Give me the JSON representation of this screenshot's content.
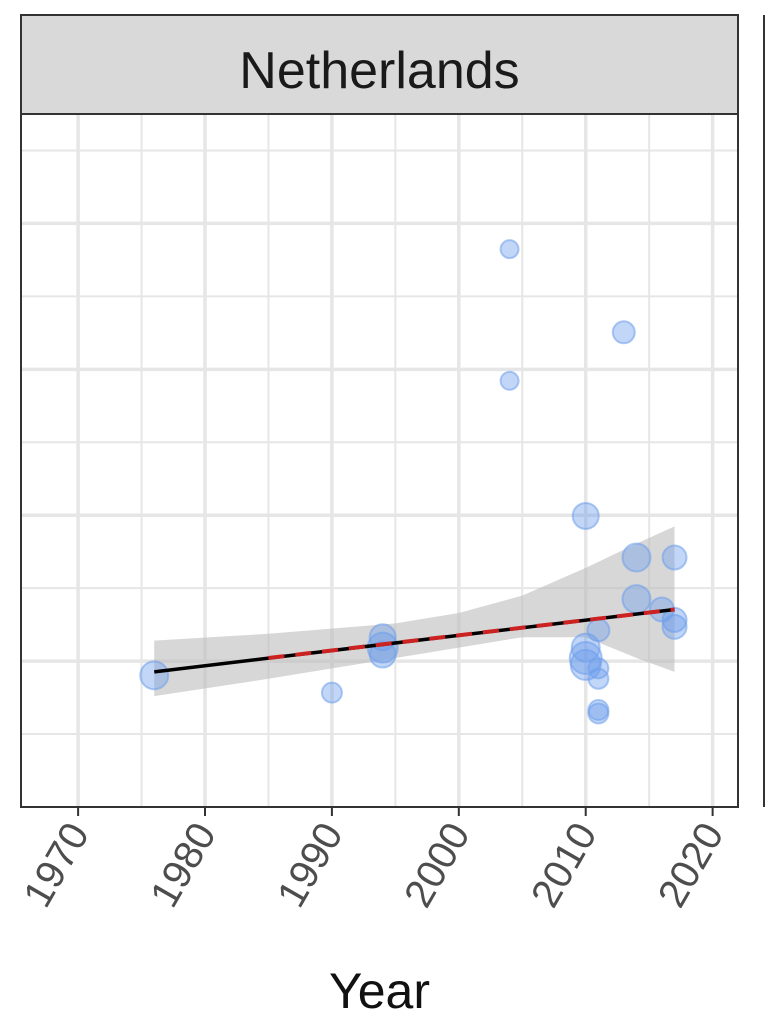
{
  "chart_data": {
    "type": "scatter",
    "facet_label": "Netherlands",
    "xlabel": "Year",
    "ylabel": "",
    "x_ticks": [
      "1970",
      "1980",
      "1990",
      "2000",
      "2010",
      "2020"
    ],
    "xlim": [
      1965.5,
      2022
    ],
    "ylim": [
      0,
      1
    ],
    "grid": true,
    "colors": {
      "point": "#6d9eeb",
      "trend": "#000000",
      "trend_dashed": "#cc2222",
      "ribbon": "#bdbdbd",
      "strip": "#d9d9d9",
      "grid": "#e6e6e6"
    },
    "points": [
      {
        "x": 1976,
        "y": 0.19,
        "size": 1.4
      },
      {
        "x": 1990,
        "y": 0.165,
        "size": 1.0
      },
      {
        "x": 1994,
        "y": 0.245,
        "size": 1.3
      },
      {
        "x": 1994,
        "y": 0.23,
        "size": 1.5
      },
      {
        "x": 1994,
        "y": 0.22,
        "size": 1.3
      },
      {
        "x": 2004,
        "y": 0.805,
        "size": 0.9
      },
      {
        "x": 2004,
        "y": 0.615,
        "size": 0.9
      },
      {
        "x": 2010,
        "y": 0.42,
        "size": 1.3
      },
      {
        "x": 2010,
        "y": 0.23,
        "size": 1.4
      },
      {
        "x": 2010,
        "y": 0.215,
        "size": 1.6
      },
      {
        "x": 2010,
        "y": 0.205,
        "size": 1.5
      },
      {
        "x": 2011,
        "y": 0.255,
        "size": 1.1
      },
      {
        "x": 2011,
        "y": 0.2,
        "size": 1.0
      },
      {
        "x": 2011,
        "y": 0.185,
        "size": 1.0
      },
      {
        "x": 2011,
        "y": 0.14,
        "size": 1.0
      },
      {
        "x": 2011,
        "y": 0.135,
        "size": 1.0
      },
      {
        "x": 2013,
        "y": 0.685,
        "size": 1.1
      },
      {
        "x": 2014,
        "y": 0.36,
        "size": 1.4
      },
      {
        "x": 2014,
        "y": 0.3,
        "size": 1.4
      },
      {
        "x": 2016,
        "y": 0.285,
        "size": 1.2
      },
      {
        "x": 2017,
        "y": 0.36,
        "size": 1.2
      },
      {
        "x": 2017,
        "y": 0.27,
        "size": 1.2
      },
      {
        "x": 2017,
        "y": 0.26,
        "size": 1.2
      }
    ],
    "trend_line": {
      "x": [
        1976,
        2017
      ],
      "y": [
        0.195,
        0.285
      ]
    },
    "trend_line_dashed": {
      "x": [
        1985,
        2017
      ],
      "y": [
        0.215,
        0.285
      ]
    },
    "confidence_band": {
      "x": [
        1976,
        1985,
        1995,
        2000,
        2005,
        2010,
        2014,
        2017
      ],
      "upper": [
        0.24,
        0.25,
        0.265,
        0.28,
        0.305,
        0.345,
        0.38,
        0.405
      ],
      "lower": [
        0.16,
        0.185,
        0.215,
        0.23,
        0.245,
        0.245,
        0.215,
        0.195
      ]
    }
  }
}
